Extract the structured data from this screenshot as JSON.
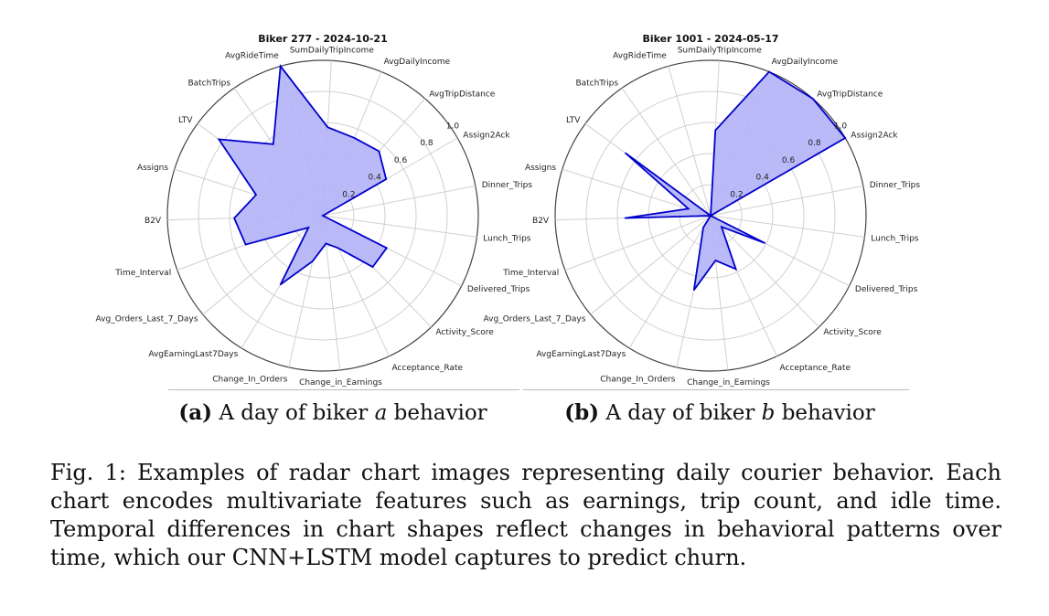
{
  "chart_data": [
    {
      "type": "radar",
      "title": "Biker 277 - 2024-10-21",
      "categories": [
        "Assign2Ack",
        "AvgTripDistance",
        "AvgDailyIncome",
        "SumDailyTripIncome",
        "AvgRideTime",
        "BatchTrips",
        "LTV",
        "Assigns",
        "B2V",
        "Time_Interval",
        "Avg_Orders_Last_7_Days",
        "AvgEarningLast7Days",
        "Change_In_Orders",
        "Change_in_Earnings",
        "Acceptance_Rate",
        "Activity_Score",
        "Delivered_Trips",
        "Lunch_Trips",
        "Dinner_Trips"
      ],
      "values": [
        0.47,
        0.55,
        0.54,
        0.57,
        1.0,
        0.56,
        0.83,
        0.45,
        0.57,
        0.53,
        0.12,
        0.52,
        0.3,
        0.18,
        0.23,
        0.46,
        0.46,
        0.0,
        0.0
      ],
      "rlim": [
        0,
        1.0
      ],
      "radial_ticks": [
        "0.2",
        "0.4",
        "0.6",
        "0.8",
        "1.0"
      ],
      "color": "#0000cc",
      "fill": "#b3b3f8"
    },
    {
      "type": "radar",
      "title": "Biker 1001 - 2024-05-17",
      "categories": [
        "Assign2Ack",
        "AvgTripDistance",
        "AvgDailyIncome",
        "SumDailyTripIncome",
        "AvgRideTime",
        "BatchTrips",
        "LTV",
        "Assigns",
        "B2V",
        "Time_Interval",
        "Avg_Orders_Last_7_Days",
        "AvgEarningLast7Days",
        "Change_In_Orders",
        "Change_in_Earnings",
        "Acceptance_Rate",
        "Activity_Score",
        "Delivered_Trips",
        "Lunch_Trips",
        "Dinner_Trips"
      ],
      "values": [
        1.0,
        1.0,
        1.0,
        0.55,
        0.0,
        0.0,
        0.68,
        0.15,
        0.55,
        0.0,
        0.0,
        0.09,
        0.49,
        0.29,
        0.38,
        0.1,
        0.39,
        0.0,
        0.0
      ],
      "rlim": [
        0,
        1.0
      ],
      "radial_ticks": [
        "0.2",
        "0.4",
        "0.6",
        "0.8",
        "1.0"
      ],
      "color": "#0000cc",
      "fill": "#b3b3f8"
    }
  ],
  "subcaptions": [
    {
      "label": "(a)",
      "text_before": "A day of biker ",
      "var": "a",
      "text_after": " behavior"
    },
    {
      "label": "(b)",
      "text_before": "A day of biker ",
      "var": "b",
      "text_after": " behavior"
    }
  ],
  "caption": "Fig. 1: Examples of radar chart images representing daily courier behavior. Each chart encodes multivariate features such as earnings, trip count, and idle time. Temporal differences in chart shapes reflect changes in behavioral patterns over time, which our CNN+LSTM model captures to predict churn."
}
